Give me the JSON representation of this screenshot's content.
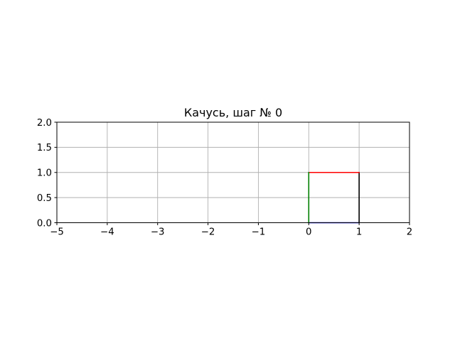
{
  "chart_data": {
    "type": "line",
    "title": "Качусь, шаг № 0",
    "xlabel": "",
    "ylabel": "",
    "xlim": [
      -5,
      2
    ],
    "ylim": [
      0,
      2
    ],
    "grid": true,
    "x_ticks": [
      {
        "value": -5,
        "label": "−5"
      },
      {
        "value": -4,
        "label": "−4"
      },
      {
        "value": -3,
        "label": "−3"
      },
      {
        "value": -2,
        "label": "−2"
      },
      {
        "value": -1,
        "label": "−1"
      },
      {
        "value": 0,
        "label": "0"
      },
      {
        "value": 1,
        "label": "1"
      },
      {
        "value": 2,
        "label": "2"
      }
    ],
    "y_ticks": [
      {
        "value": 0,
        "label": "0.0"
      },
      {
        "value": 0.5,
        "label": "0.5"
      },
      {
        "value": 1,
        "label": "1.0"
      },
      {
        "value": 1.5,
        "label": "1.5"
      },
      {
        "value": 2,
        "label": "2.0"
      }
    ],
    "series": [
      {
        "color": "#0000ff",
        "x": [
          0,
          1
        ],
        "y": [
          0,
          0
        ]
      },
      {
        "color": "#000000",
        "x": [
          1,
          1
        ],
        "y": [
          0,
          1
        ]
      },
      {
        "color": "#ff0000",
        "x": [
          1,
          0
        ],
        "y": [
          1,
          1
        ]
      },
      {
        "color": "#008000",
        "x": [
          0,
          0
        ],
        "y": [
          1,
          0
        ]
      }
    ]
  }
}
